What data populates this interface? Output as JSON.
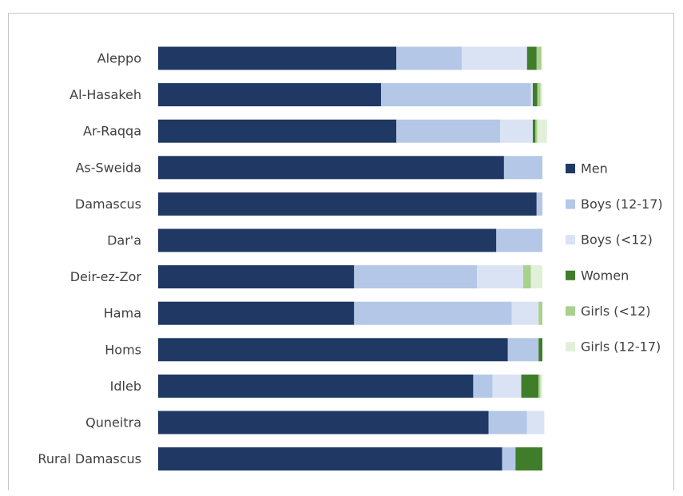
{
  "chart_data": {
    "type": "bar",
    "orientation": "horizontal",
    "stacked": "percent",
    "title": "",
    "xlabel": "",
    "ylabel": "",
    "xlim": [
      0,
      100
    ],
    "grid": false,
    "legend_position": "right",
    "categories": [
      "Aleppo",
      "Al-Hasakeh",
      "Ar-Raqqa",
      "As-Sweida",
      "Damascus",
      "Dar'a",
      "Deir-ez-Zor",
      "Hama",
      "Homs",
      "Idleb",
      "Quneitra",
      "Rural Damascus"
    ],
    "series": [
      {
        "name": "Men",
        "color": "#1f3864",
        "values": [
          62,
          58,
          62,
          90,
          98.5,
          88,
          51,
          51,
          91,
          82,
          86,
          89.5
        ]
      },
      {
        "name": "Boys (12-17)",
        "color": "#b4c7e7",
        "values": [
          17,
          39,
          27,
          10,
          1.5,
          12,
          32,
          41,
          8,
          5,
          10,
          3.5
        ]
      },
      {
        "name": "Boys (<12)",
        "color": "#dae3f3",
        "values": [
          17,
          0.5,
          8.5,
          0,
          0,
          0,
          12,
          7,
          0,
          7.5,
          4.5,
          0
        ]
      },
      {
        "name": "Women",
        "color": "#3f7d2a",
        "values": [
          2.5,
          1.2,
          0.7,
          0,
          0,
          0,
          0,
          0,
          1,
          4.5,
          0,
          7
        ]
      },
      {
        "name": "Girls (<12)",
        "color": "#a9d18e",
        "values": [
          1.2,
          0.8,
          0.5,
          0,
          0,
          0,
          2,
          1,
          0,
          0.5,
          0,
          0
        ]
      },
      {
        "name": "Girls (12-17)",
        "color": "#e2f0d9",
        "values": [
          0.3,
          0.5,
          2.5,
          0,
          0,
          0,
          3,
          0,
          0,
          0.5,
          0,
          0
        ]
      }
    ]
  }
}
